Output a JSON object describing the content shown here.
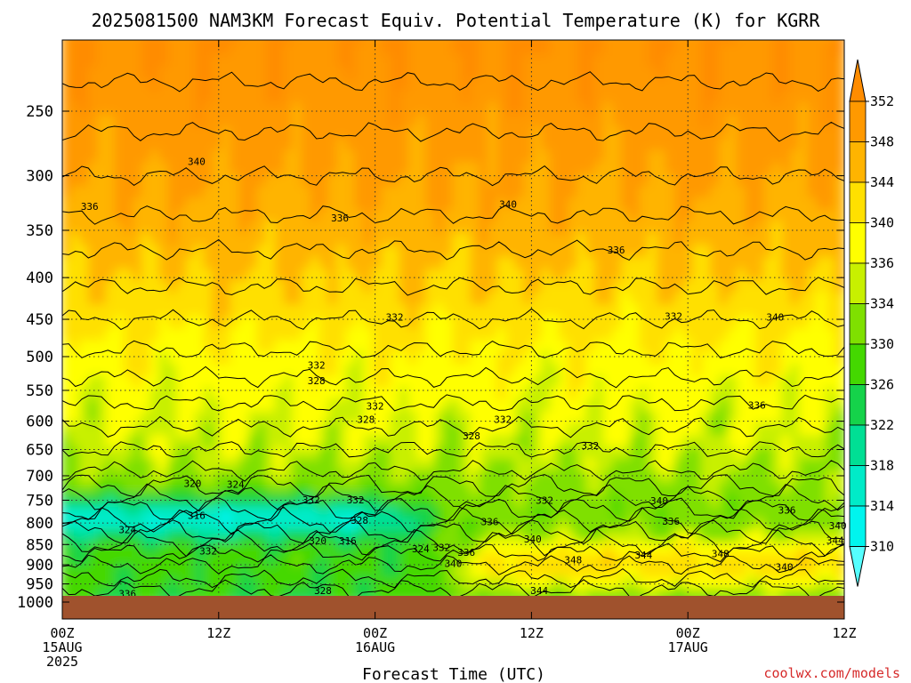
{
  "chart_data": {
    "type": "heatmap",
    "title": "2025081500 NAM3KM Forecast Equiv. Potential Temperature (K) for KGRR",
    "xlabel": "Forecast Time (UTC)",
    "ylabel": "",
    "x_ticks": [
      {
        "hours": 0,
        "line1": "00Z",
        "line2": "15AUG",
        "line3": "2025"
      },
      {
        "hours": 12,
        "line1": "12Z",
        "line2": "",
        "line3": ""
      },
      {
        "hours": 24,
        "line1": "00Z",
        "line2": "16AUG",
        "line3": ""
      },
      {
        "hours": 36,
        "line1": "12Z",
        "line2": "",
        "line3": ""
      },
      {
        "hours": 48,
        "line1": "00Z",
        "line2": "17AUG",
        "line3": ""
      },
      {
        "hours": 60,
        "line1": "12Z",
        "line2": "",
        "line3": ""
      }
    ],
    "xlim": [
      0,
      60
    ],
    "y_ticks": [
      250,
      300,
      350,
      400,
      450,
      500,
      550,
      600,
      650,
      700,
      750,
      800,
      850,
      900,
      950,
      1000
    ],
    "ylim": [
      1000,
      200
    ],
    "colorbar": {
      "labels": [
        352,
        348,
        344,
        340,
        336,
        334,
        330,
        326,
        322,
        318,
        314,
        310
      ],
      "colors": [
        "#ff9900",
        "#ffb400",
        "#ffe000",
        "#ffff00",
        "#c8f000",
        "#7fe000",
        "#44d800",
        "#15d34a",
        "#00df94",
        "#00ebc8",
        "#00f5ee"
      ],
      "top_arrow_color": "#ff8c00",
      "bottom_arrow_color": "#55ffff"
    },
    "contour_labels": [
      {
        "text": "340",
        "t": 10.3,
        "p": 288
      },
      {
        "text": "336",
        "t": 2.1,
        "p": 327
      },
      {
        "text": "336",
        "t": 21.3,
        "p": 338
      },
      {
        "text": "340",
        "t": 34.2,
        "p": 325
      },
      {
        "text": "336",
        "t": 42.5,
        "p": 370
      },
      {
        "text": "332",
        "t": 25.5,
        "p": 447
      },
      {
        "text": "332",
        "t": 46.9,
        "p": 446
      },
      {
        "text": "340",
        "t": 54.7,
        "p": 447
      },
      {
        "text": "332",
        "t": 19.5,
        "p": 512
      },
      {
        "text": "328",
        "t": 19.5,
        "p": 535
      },
      {
        "text": "332",
        "t": 24.0,
        "p": 575
      },
      {
        "text": "328",
        "t": 23.3,
        "p": 597
      },
      {
        "text": "332",
        "t": 33.8,
        "p": 597
      },
      {
        "text": "336",
        "t": 53.3,
        "p": 573
      },
      {
        "text": "328",
        "t": 31.4,
        "p": 625
      },
      {
        "text": "332",
        "t": 40.5,
        "p": 643
      },
      {
        "text": "320",
        "t": 10.0,
        "p": 715
      },
      {
        "text": "324",
        "t": 13.3,
        "p": 717
      },
      {
        "text": "332",
        "t": 19.1,
        "p": 749
      },
      {
        "text": "332",
        "t": 22.5,
        "p": 749
      },
      {
        "text": "332",
        "t": 37.0,
        "p": 750
      },
      {
        "text": "340",
        "t": 45.8,
        "p": 751
      },
      {
        "text": "336",
        "t": 55.6,
        "p": 771
      },
      {
        "text": "316",
        "t": 10.3,
        "p": 783
      },
      {
        "text": "328",
        "t": 22.8,
        "p": 794
      },
      {
        "text": "336",
        "t": 32.8,
        "p": 797
      },
      {
        "text": "336",
        "t": 46.7,
        "p": 796
      },
      {
        "text": "340",
        "t": 59.5,
        "p": 806
      },
      {
        "text": "324",
        "t": 5.0,
        "p": 815
      },
      {
        "text": "340",
        "t": 36.1,
        "p": 837
      },
      {
        "text": "344",
        "t": 59.3,
        "p": 840
      },
      {
        "text": "320",
        "t": 19.6,
        "p": 841
      },
      {
        "text": "316",
        "t": 21.9,
        "p": 841
      },
      {
        "text": "324",
        "t": 27.5,
        "p": 860
      },
      {
        "text": "332",
        "t": 29.1,
        "p": 857
      },
      {
        "text": "336",
        "t": 31.0,
        "p": 869
      },
      {
        "text": "332",
        "t": 11.2,
        "p": 866
      },
      {
        "text": "348",
        "t": 39.2,
        "p": 887
      },
      {
        "text": "344",
        "t": 44.6,
        "p": 875
      },
      {
        "text": "348",
        "t": 50.5,
        "p": 872
      },
      {
        "text": "340",
        "t": 30.0,
        "p": 897
      },
      {
        "text": "340",
        "t": 55.4,
        "p": 905
      },
      {
        "text": "328",
        "t": 20.0,
        "p": 968
      },
      {
        "text": "344",
        "t": 36.6,
        "p": 968
      },
      {
        "text": "336",
        "t": 5.0,
        "p": 976
      }
    ],
    "field_description_values": {
      "upper_levels_200_350": "340-352",
      "mid_levels_400_650": "328-336",
      "low_level_moist_band_750_850_first_day": "312-320",
      "boundary_layer_900_1000_day2_3": "344-350"
    }
  },
  "credit": "coolwx.com/models"
}
